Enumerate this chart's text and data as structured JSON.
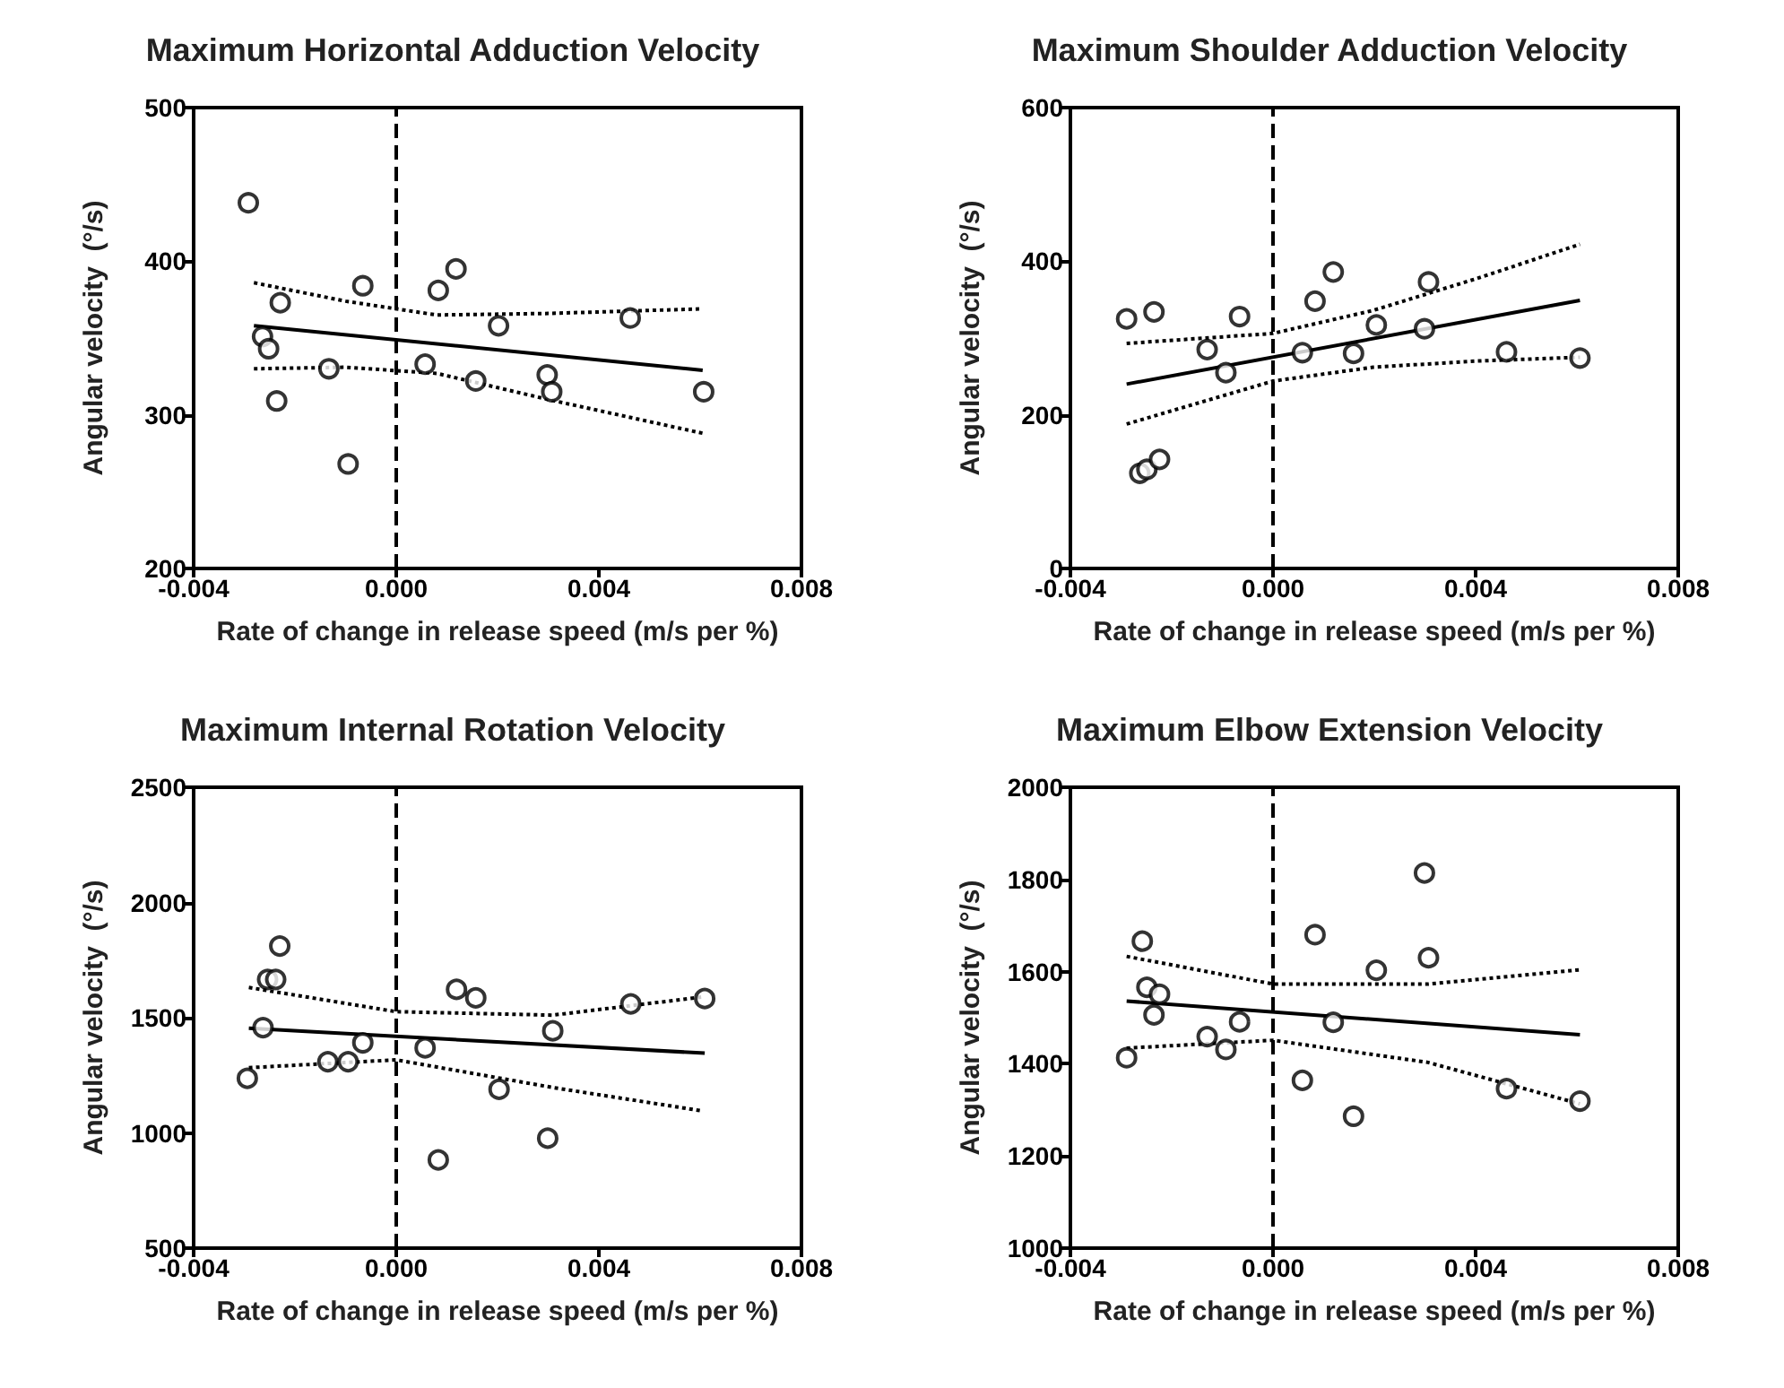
{
  "chart_data": [
    {
      "type": "scatter",
      "title": "Maximum Horizontal Adduction Velocity",
      "xlabel": "Rate of change in release speed (m/s per %)",
      "ylabel": "Angular velocity  (°/s)",
      "xlim": [
        -0.004,
        0.008
      ],
      "xticks": [
        {
          "value": -0.004,
          "label": "-0.004"
        },
        {
          "value": 0,
          "label": "0.000"
        },
        {
          "value": 0.004,
          "label": "0.004"
        },
        {
          "value": 0.008,
          "label": "0.008"
        }
      ],
      "ylim": [
        200,
        500
      ],
      "yticks": [
        200,
        300,
        400,
        500
      ],
      "grid": false,
      "marker": "circle",
      "ref_lines": [
        {
          "axis": "x",
          "value": 0,
          "line_style": "dashed",
          "color": "#000000"
        }
      ],
      "series": [
        {
          "type": "scatter",
          "color": "#000000",
          "x": [
            -0.00292,
            -0.00264,
            -0.00252,
            -0.00229,
            -0.00236,
            -0.00133,
            -0.00095,
            -0.00066,
            0.00057,
            0.00083,
            0.00118,
            0.00157,
            0.00202,
            0.00298,
            0.00307,
            0.00462,
            0.00607
          ],
          "values": [
            438,
            351,
            343,
            373,
            309,
            330,
            268,
            384,
            333,
            381,
            395,
            322,
            358,
            326,
            315,
            363,
            315
          ]
        },
        {
          "type": "line",
          "marker": "none",
          "color": "#000000",
          "line_style": "solid",
          "x": [
            -0.00281,
            0.00605
          ],
          "values": [
            358,
            329
          ]
        },
        {
          "type": "line",
          "marker": "none",
          "color": "#000000",
          "line_style": "dotted",
          "x": [
            -0.00281,
            -0.001,
            0.0008,
            0.003,
            0.00605
          ],
          "values": [
            386,
            374,
            365,
            366,
            369
          ]
        },
        {
          "type": "line",
          "marker": "none",
          "color": "#000000",
          "line_style": "dotted",
          "x": [
            -0.00281,
            -0.001,
            0.0008,
            0.003,
            0.00605
          ],
          "values": [
            330,
            331,
            327,
            310,
            288
          ]
        }
      ]
    },
    {
      "type": "scatter",
      "title": "Maximum Shoulder Adduction Velocity",
      "xlabel": "Rate of change in release speed (m/s per %)",
      "ylabel": "Angular velocity  (°/s)",
      "xlim": [
        -0.004,
        0.008
      ],
      "xticks": [
        {
          "value": -0.004,
          "label": "-0.004"
        },
        {
          "value": 0,
          "label": "0.000"
        },
        {
          "value": 0.004,
          "label": "0.004"
        },
        {
          "value": 0.008,
          "label": "0.008"
        }
      ],
      "ylim": [
        0,
        600
      ],
      "yticks": [
        0,
        200,
        400,
        600
      ],
      "grid": false,
      "marker": "circle",
      "ref_lines": [
        {
          "axis": "x",
          "value": 0,
          "line_style": "dashed",
          "color": "#000000"
        }
      ],
      "series": [
        {
          "type": "scatter",
          "color": "#000000",
          "x": [
            -0.00289,
            -0.00235,
            -0.00263,
            -0.00249,
            -0.00224,
            -0.0013,
            -0.00093,
            -0.00066,
            0.00058,
            0.00083,
            0.00119,
            0.00159,
            0.00204,
            0.00299,
            0.00307,
            0.00461,
            0.00606
          ],
          "values": [
            325,
            334,
            124,
            129,
            142,
            285,
            255,
            328,
            281,
            348,
            386,
            280,
            317,
            312,
            373,
            282,
            274
          ]
        },
        {
          "type": "line",
          "marker": "none",
          "color": "#000000",
          "line_style": "solid",
          "x": [
            -0.00289,
            0.00606
          ],
          "values": [
            240,
            349
          ]
        },
        {
          "type": "line",
          "marker": "none",
          "color": "#000000",
          "line_style": "dotted",
          "x": [
            -0.00289,
            0,
            0.00198,
            0.004,
            0.00606
          ],
          "values": [
            293,
            306,
            336,
            377,
            422
          ]
        },
        {
          "type": "line",
          "marker": "none",
          "color": "#000000",
          "line_style": "dotted",
          "x": [
            -0.00289,
            0,
            0.00198,
            0.004,
            0.00606
          ],
          "values": [
            188,
            244,
            262,
            270,
            275
          ]
        }
      ]
    },
    {
      "type": "scatter",
      "title": "Maximum Internal Rotation Velocity",
      "xlabel": "Rate of change in release speed (m/s per %)",
      "ylabel": "Angular velocity  (°/s)",
      "xlim": [
        -0.004,
        0.008
      ],
      "xticks": [
        {
          "value": -0.004,
          "label": "-0.004"
        },
        {
          "value": 0,
          "label": "0.000"
        },
        {
          "value": 0.004,
          "label": "0.004"
        },
        {
          "value": 0.008,
          "label": "0.008"
        }
      ],
      "ylim": [
        500,
        2500
      ],
      "yticks": [
        500,
        1000,
        1500,
        2000,
        2500
      ],
      "grid": false,
      "marker": "circle",
      "ref_lines": [
        {
          "axis": "x",
          "value": 0,
          "line_style": "dashed",
          "color": "#000000"
        }
      ],
      "series": [
        {
          "type": "scatter",
          "color": "#000000",
          "x": [
            -0.00294,
            -0.00263,
            -0.00254,
            -0.00238,
            -0.0023,
            -0.00135,
            -0.00095,
            -0.00066,
            0.00057,
            0.00083,
            0.00119,
            0.00157,
            0.00203,
            0.00299,
            0.00309,
            0.00463,
            0.00609
          ],
          "values": [
            1237,
            1457,
            1666,
            1666,
            1811,
            1309,
            1309,
            1391,
            1369,
            883,
            1623,
            1586,
            1189,
            977,
            1443,
            1560,
            1583
          ]
        },
        {
          "type": "line",
          "marker": "none",
          "color": "#000000",
          "line_style": "solid",
          "x": [
            -0.00291,
            0.00609
          ],
          "values": [
            1454,
            1346
          ]
        },
        {
          "type": "line",
          "marker": "none",
          "color": "#000000",
          "line_style": "dotted",
          "x": [
            -0.00291,
            0,
            0.00309,
            0.00609
          ],
          "values": [
            1631,
            1526,
            1511,
            1591
          ]
        },
        {
          "type": "line",
          "marker": "none",
          "color": "#000000",
          "line_style": "dotted",
          "x": [
            -0.00291,
            0,
            0.00309,
            0.006
          ],
          "values": [
            1283,
            1317,
            1197,
            1097
          ]
        }
      ]
    },
    {
      "type": "scatter",
      "title": "Maximum Elbow Extension Velocity",
      "xlabel": "Rate of change in release speed (m/s per %)",
      "ylabel": "Angular velocity  (°/s)",
      "xlim": [
        -0.004,
        0.008
      ],
      "xticks": [
        {
          "value": -0.004,
          "label": "-0.004"
        },
        {
          "value": 0,
          "label": "0.000"
        },
        {
          "value": 0.004,
          "label": "0.004"
        },
        {
          "value": 0.008,
          "label": "0.008"
        }
      ],
      "ylim": [
        1000,
        2000
      ],
      "yticks": [
        1000,
        1200,
        1400,
        1600,
        1800,
        2000
      ],
      "grid": false,
      "marker": "circle",
      "ref_lines": [
        {
          "axis": "x",
          "value": 0,
          "line_style": "dashed",
          "color": "#000000"
        }
      ],
      "series": [
        {
          "type": "scatter",
          "color": "#000000",
          "x": [
            -0.00289,
            -0.00258,
            -0.00249,
            -0.00224,
            -0.00235,
            -0.0013,
            -0.00093,
            -0.00066,
            0.00058,
            0.00083,
            0.00119,
            0.00159,
            0.00204,
            0.00299,
            0.00307,
            0.00461,
            0.00606
          ],
          "values": [
            1413,
            1666,
            1566,
            1551,
            1506,
            1459,
            1431,
            1491,
            1364,
            1680,
            1490,
            1286,
            1603,
            1814,
            1630,
            1346,
            1319
          ]
        },
        {
          "type": "line",
          "marker": "none",
          "color": "#000000",
          "line_style": "solid",
          "x": [
            -0.00289,
            0.00606
          ],
          "values": [
            1536,
            1463
          ]
        },
        {
          "type": "line",
          "marker": "none",
          "color": "#000000",
          "line_style": "dotted",
          "x": [
            -0.00289,
            0,
            0.00306,
            0.00606
          ],
          "values": [
            1633,
            1573,
            1573,
            1604
          ]
        },
        {
          "type": "line",
          "marker": "none",
          "color": "#000000",
          "line_style": "dotted",
          "x": [
            -0.00289,
            0,
            0.00306,
            0.00606
          ],
          "values": [
            1434,
            1451,
            1403,
            1313
          ]
        }
      ]
    }
  ]
}
